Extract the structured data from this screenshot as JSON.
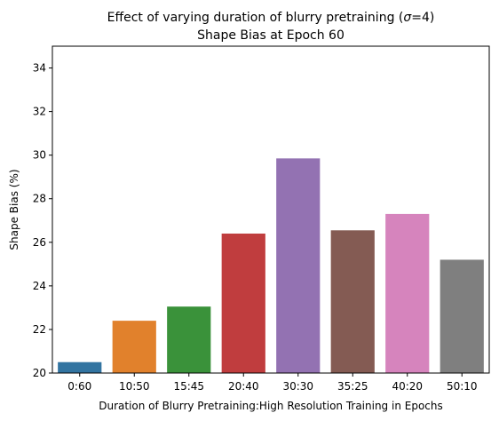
{
  "chart_data": {
    "type": "bar",
    "title_line1_prefix": "Effect of varying duration of blurry pretraining (",
    "title_sigma": "σ",
    "title_line1_suffix": "=4)",
    "title_line2": "Shape Bias at Epoch 60",
    "xlabel": "Duration of Blurry Pretraining:High Resolution Training in Epochs",
    "ylabel": "Shape Bias (%)",
    "categories": [
      "0:60",
      "10:50",
      "15:45",
      "20:40",
      "30:30",
      "35:25",
      "40:20",
      "50:10"
    ],
    "values": [
      20.5,
      22.4,
      23.05,
      26.4,
      29.85,
      26.55,
      27.3,
      25.2
    ],
    "colors": [
      "#3274a1",
      "#e1812c",
      "#3a923a",
      "#c03d3e",
      "#9372b2",
      "#845b53",
      "#d684bd",
      "#7f7f7f"
    ],
    "ylim": [
      20,
      35
    ],
    "yticks": [
      "20",
      "22",
      "24",
      "26",
      "28",
      "30",
      "32",
      "34"
    ],
    "grid": false,
    "legend": "none"
  }
}
